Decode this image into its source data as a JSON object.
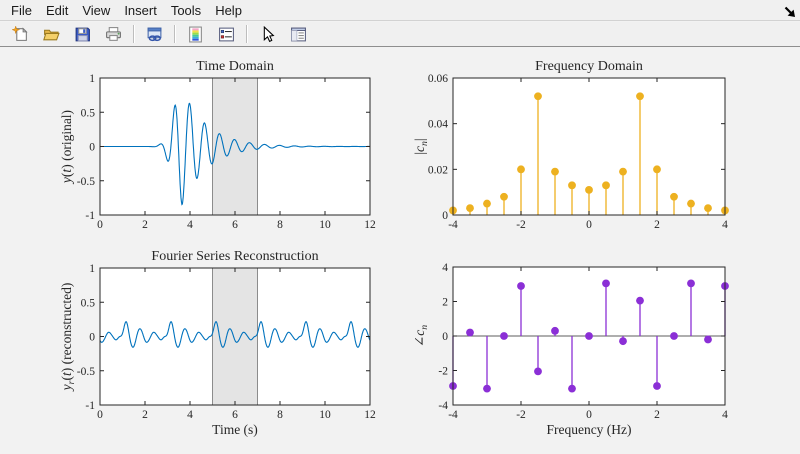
{
  "window": {
    "menu": [
      "File",
      "Edit",
      "View",
      "Insert",
      "Tools",
      "Help"
    ],
    "toolbar_icons": [
      "new-figure",
      "open-file",
      "save-figure",
      "print-figure",
      "link-plot",
      "insert-colorbar",
      "insert-legend",
      "edit-plot-arrow",
      "property-editor"
    ]
  },
  "colors": {
    "line_blue": "#0072BD",
    "stem_yellow": "#EDB120",
    "stem_purple": "#8B2FD6",
    "axes_text": "#262626",
    "region_fill": "#e4e4e4",
    "region_edge": "#8c8c8c"
  },
  "chart_data": [
    {
      "id": "time_domain",
      "type": "line",
      "title": "Time Domain",
      "xlabel": "",
      "ylabel": "*y*(*t*) (original)",
      "xlim": [
        0,
        12
      ],
      "ylim": [
        -1,
        1
      ],
      "xticks": [
        0,
        2,
        4,
        6,
        8,
        10,
        12
      ],
      "yticks": [
        -1,
        -0.5,
        0,
        0.5,
        1
      ],
      "line_color": "#0072BD",
      "highlight_region": {
        "x0": 5,
        "x1": 7
      },
      "signal_model": {
        "type": "damped_wave_packet",
        "carrier_hz": 1.5,
        "center_t": 3.65,
        "peak_amplitude": 0.85,
        "rise_sigma": 0.55,
        "decay_tau": 1.1,
        "t_range": [
          0,
          12
        ],
        "formula": "y(t) = -A*env(t-t0)*cos(2*pi*f*(t-t0)); env = gaussian rise, exponential decay"
      }
    },
    {
      "id": "frequency_domain",
      "type": "stem",
      "title": "Frequency Domain",
      "xlabel": "",
      "ylabel": "|*c*_*n*|",
      "xlim": [
        -4,
        4
      ],
      "ylim": [
        0,
        0.06
      ],
      "xticks": [
        -4,
        -2,
        0,
        2,
        4
      ],
      "yticks": [
        0,
        0.02,
        0.04,
        0.06
      ],
      "color": "#EDB120",
      "baseline": false,
      "x": [
        -4,
        -3.5,
        -3,
        -2.5,
        -2,
        -1.5,
        -1,
        -0.5,
        0,
        0.5,
        1,
        1.5,
        2,
        2.5,
        3,
        3.5,
        4
      ],
      "values": [
        0.002,
        0.003,
        0.005,
        0.008,
        0.02,
        0.052,
        0.019,
        0.013,
        0.011,
        0.013,
        0.019,
        0.052,
        0.02,
        0.008,
        0.005,
        0.003,
        0.002
      ]
    },
    {
      "id": "reconstruction",
      "type": "line",
      "title": "Fourier Series Reconstruction",
      "xlabel": "Time (s)",
      "ylabel": "*y*_*r*(*t*) (reconstructed)",
      "xlim": [
        0,
        12
      ],
      "ylim": [
        -1,
        1
      ],
      "xticks": [
        0,
        2,
        4,
        6,
        8,
        10,
        12
      ],
      "yticks": [
        -1,
        -0.5,
        0,
        0.5,
        1
      ],
      "line_color": "#0072BD",
      "highlight_region": {
        "x0": 5,
        "x1": 7
      },
      "fourier_synthesis": {
        "dc": 0.011,
        "fundamental_hz": 0.5,
        "harmonics_hz": [
          0.5,
          1,
          1.5,
          2,
          2.5,
          3,
          3.5,
          4
        ],
        "magnitudes": [
          0.013,
          0.019,
          0.052,
          0.02,
          0.008,
          0.005,
          0.003,
          0.002
        ],
        "phases_rad": [
          3.05,
          -0.3,
          2.05,
          -2.9,
          0.0,
          3.05,
          -0.2,
          2.9
        ],
        "formula": "yr(t) = dc + sum 2*m_k*cos(2*pi*f_k*t + p_k)"
      }
    },
    {
      "id": "phase",
      "type": "stem",
      "title": "",
      "xlabel": "Frequency (Hz)",
      "ylabel": "∠*c*_*n*",
      "xlim": [
        -4,
        4
      ],
      "ylim": [
        -4,
        4
      ],
      "xticks": [
        -4,
        -2,
        0,
        2,
        4
      ],
      "yticks": [
        -4,
        -2,
        0,
        2,
        4
      ],
      "color": "#8B2FD6",
      "baseline": true,
      "x": [
        -4,
        -3.5,
        -3,
        -2.5,
        -2,
        -1.5,
        -1,
        -0.5,
        0,
        0.5,
        1,
        1.5,
        2,
        2.5,
        3,
        3.5,
        4
      ],
      "values": [
        -2.9,
        0.2,
        -3.05,
        0.0,
        2.9,
        -2.05,
        0.3,
        -3.05,
        0.0,
        3.05,
        -0.3,
        2.05,
        -2.9,
        0.0,
        3.05,
        -0.2,
        2.9
      ]
    }
  ]
}
